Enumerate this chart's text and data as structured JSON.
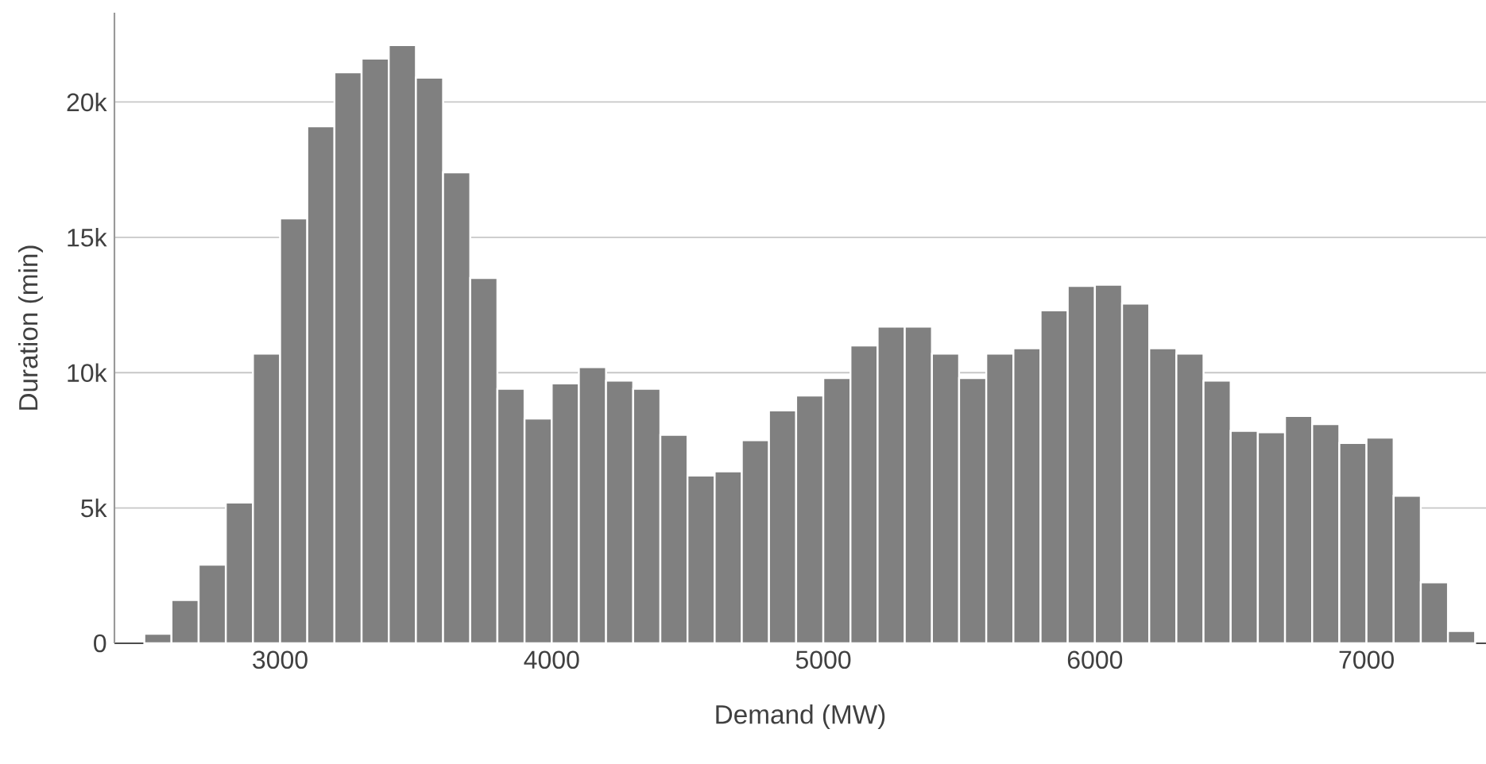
{
  "chart_data": {
    "type": "histogram",
    "xlabel": "Demand (MW)",
    "ylabel": "Duration (min)",
    "color": "#808080",
    "grid": "y",
    "bins": [
      2500,
      2600,
      2700,
      2800,
      2900,
      3000,
      3100,
      3200,
      3300,
      3400,
      3500,
      3600,
      3700,
      3800,
      3900,
      4000,
      4100,
      4200,
      4300,
      4400,
      4500,
      4600,
      4700,
      4800,
      4900,
      5000,
      5100,
      5200,
      5300,
      5400,
      5500,
      5600,
      5700,
      5800,
      5900,
      6000,
      6100,
      6200,
      6300,
      6400,
      6500,
      6600,
      6700,
      6800,
      6900,
      7000,
      7100,
      7200,
      7300,
      7400
    ],
    "values": [
      350,
      1600,
      2900,
      5200,
      10700,
      15700,
      19100,
      21100,
      21600,
      22100,
      20900,
      17400,
      13500,
      9400,
      8300,
      9600,
      10200,
      9700,
      9400,
      7700,
      6200,
      6350,
      7500,
      8600,
      9150,
      9800,
      11000,
      11700,
      11700,
      10700,
      9800,
      10700,
      10900,
      12300,
      13200,
      13250,
      12550,
      10900,
      10700,
      9700,
      7850,
      7800,
      8400,
      8100,
      7400,
      7600,
      5450,
      2250,
      450
    ],
    "xlim": [
      2390,
      7440
    ],
    "ylim": [
      0,
      23300
    ],
    "xticks": [
      3000,
      4000,
      5000,
      6000,
      7000
    ],
    "yticks": [
      0,
      {
        "value": 5000,
        "label": "5k"
      },
      {
        "value": 10000,
        "label": "10k"
      },
      {
        "value": 15000,
        "label": "15k"
      },
      {
        "value": 20000,
        "label": "20k"
      }
    ]
  }
}
